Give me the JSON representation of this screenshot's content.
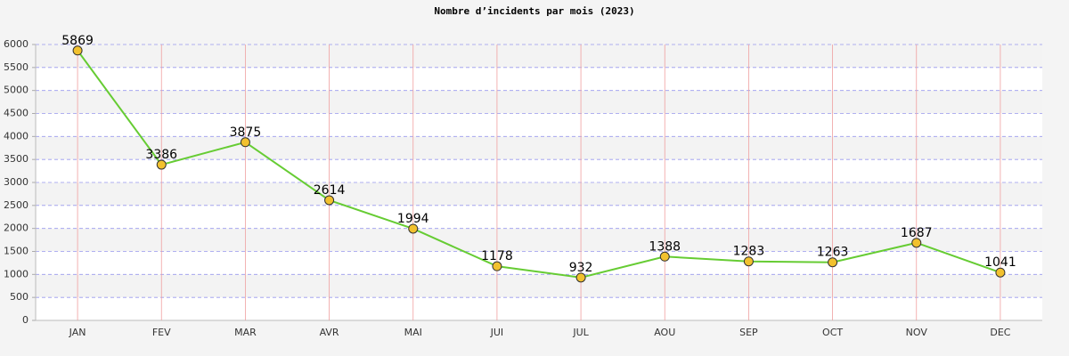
{
  "chart_data": {
    "type": "line",
    "title": "Nombre d’incidents par mois (2023)",
    "categories": [
      "JAN",
      "FEV",
      "MAR",
      "AVR",
      "MAI",
      "JUI",
      "JUL",
      "AOU",
      "SEP",
      "OCT",
      "NOV",
      "DEC"
    ],
    "values": [
      5869,
      3386,
      3875,
      2614,
      1994,
      1178,
      932,
      1388,
      1283,
      1263,
      1687,
      1041
    ],
    "color": "#66cc33",
    "marker_color": "#f2c12e",
    "ylim": [
      0,
      6000
    ],
    "yticks": [
      0,
      500,
      1000,
      1500,
      2000,
      2500,
      3000,
      3500,
      4000,
      4500,
      5000,
      5500,
      6000
    ],
    "grid": true
  }
}
